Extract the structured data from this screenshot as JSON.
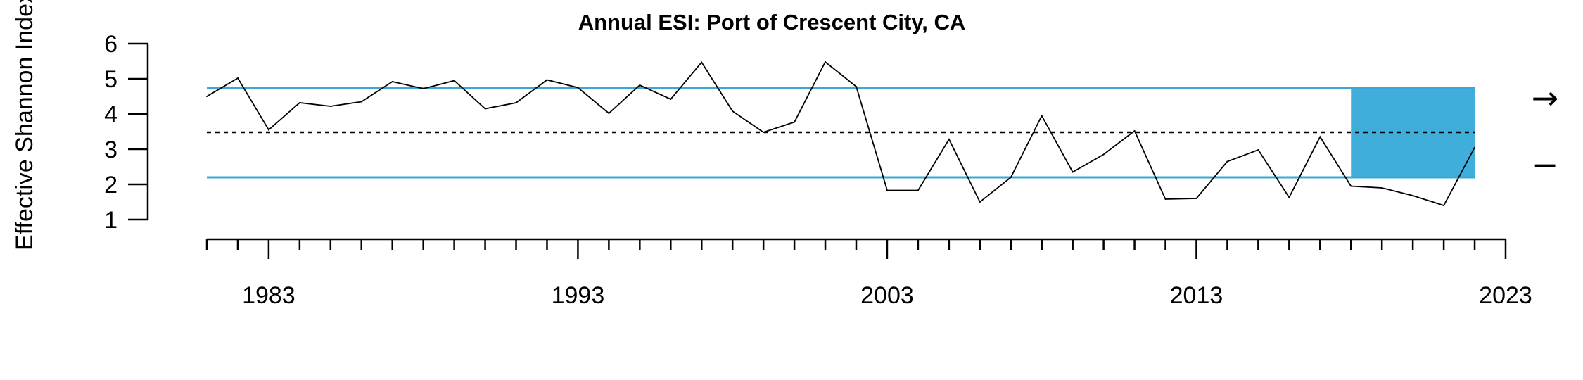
{
  "chart_data": {
    "type": "line",
    "title": "Annual ESI: Port of Crescent City, CA",
    "ylabel": "Effective Shannon Index",
    "xlabel": "",
    "y_ticks": [
      1,
      2,
      3,
      4,
      5,
      6
    ],
    "x_tick_labels": [
      "1983",
      "1993",
      "2003",
      "2013",
      "2023"
    ],
    "xlim": [
      1981,
      2023
    ],
    "ylim": [
      1,
      6
    ],
    "grid": false,
    "series": [
      {
        "x": [
          1981,
          1982,
          1983,
          1984,
          1985,
          1986,
          1987,
          1988,
          1989,
          1990,
          1991,
          1992,
          1993,
          1994,
          1995,
          1996,
          1997,
          1998,
          1999,
          2000,
          2001,
          2002,
          2003,
          2004,
          2005,
          2006,
          2007,
          2008,
          2009,
          2010,
          2011,
          2012,
          2013,
          2014,
          2015,
          2016,
          2017,
          2018,
          2019,
          2020,
          2021,
          2022
        ],
        "values": [
          4.5,
          5.02,
          3.55,
          4.32,
          4.22,
          4.35,
          4.92,
          4.72,
          4.95,
          4.15,
          4.32,
          4.97,
          4.75,
          4.02,
          4.82,
          4.42,
          5.47,
          4.08,
          3.48,
          3.77,
          5.48,
          4.78,
          1.83,
          1.83,
          3.28,
          1.5,
          2.2,
          3.95,
          2.35,
          2.85,
          3.52,
          1.58,
          1.6,
          2.65,
          2.98,
          1.63,
          3.35,
          1.95,
          1.9,
          1.68,
          1.4,
          3.05
        ]
      }
    ],
    "mean": 3.48,
    "sd_upper": 4.74,
    "sd_lower": 2.2,
    "highlight_range": [
      2018,
      2022
    ],
    "trend_symbols": [
      "→",
      "−"
    ],
    "colors": {
      "band": "#3aa8d6",
      "highlight": "#40aedb",
      "line": "#000000"
    }
  }
}
